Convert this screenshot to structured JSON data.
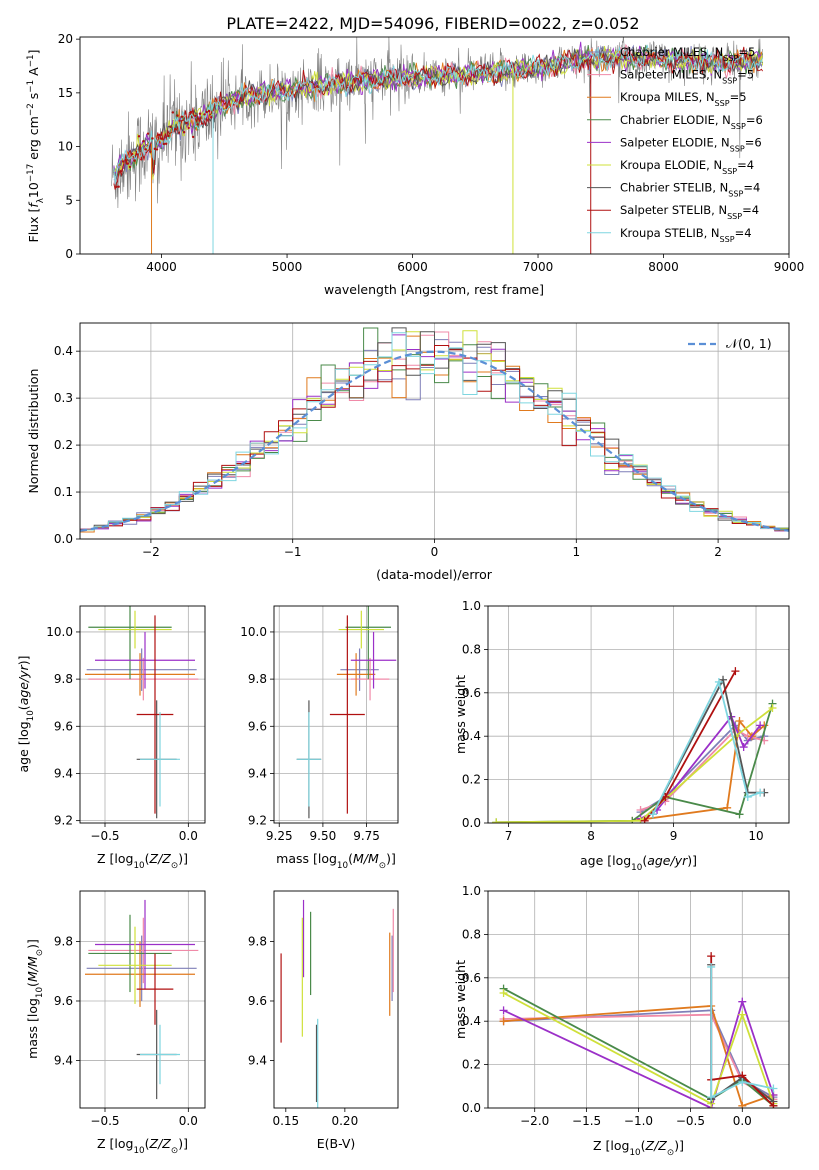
{
  "figure_title": "PLATE=2422, MJD=54096, FIBERID=0022, z=0.052",
  "colors": {
    "chabrier_miles": "#7f7fb8",
    "salpeter_miles": "#f08aa8",
    "kroupa_miles": "#e07a1e",
    "chabrier_elodie": "#4a8a4a",
    "salpeter_elodie": "#9b30c8",
    "kroupa_elodie": "#cfe03a",
    "chabrier_stelib": "#555555",
    "salpeter_stelib": "#b01010",
    "kroupa_stelib": "#7fd6e0",
    "data_spectrum": "#808080",
    "normal_curve": "#5b8fd6"
  },
  "chart_data": [
    {
      "id": "spectrum",
      "type": "line",
      "xlabel": "wavelength [Angstrom, rest frame]",
      "ylabel": "Flux [f_λ10^-17 erg cm^-2 s^-1 A^-1]",
      "xlim": [
        3350,
        9000
      ],
      "ylim": [
        0,
        20.2
      ],
      "xticks": [
        4000,
        5000,
        6000,
        7000,
        8000,
        9000
      ],
      "yticks": [
        0,
        5,
        10,
        15,
        20
      ],
      "legend_position": "top-right",
      "legend": [
        {
          "label": "Chabrier MILES, N_SSP=5",
          "color_key": "chabrier_miles"
        },
        {
          "label": "Salpeter MILES, N_SSP=5",
          "color_key": "salpeter_miles"
        },
        {
          "label": "Kroupa MILES, N_SSP=5",
          "color_key": "kroupa_miles"
        },
        {
          "label": "Chabrier ELODIE, N_SSP=6",
          "color_key": "chabrier_elodie"
        },
        {
          "label": "Salpeter ELODIE, N_SSP=6",
          "color_key": "salpeter_elodie"
        },
        {
          "label": "Kroupa ELODIE, N_SSP=4",
          "color_key": "kroupa_elodie"
        },
        {
          "label": "Chabrier STELIB, N_SSP=4",
          "color_key": "chabrier_stelib"
        },
        {
          "label": "Salpeter STELIB, N_SSP=4",
          "color_key": "salpeter_stelib"
        },
        {
          "label": "Kroupa STELIB, N_SSP=4",
          "color_key": "kroupa_stelib"
        }
      ],
      "continuum": [
        [
          3600,
          7.0
        ],
        [
          3700,
          8.5
        ],
        [
          3900,
          10.2
        ],
        [
          4000,
          10.5
        ],
        [
          4100,
          12.0
        ],
        [
          4300,
          12.5
        ],
        [
          4500,
          14.0
        ],
        [
          4700,
          14.8
        ],
        [
          5000,
          15.2
        ],
        [
          5200,
          15.6
        ],
        [
          5500,
          16.0
        ],
        [
          5800,
          16.3
        ],
        [
          6000,
          16.5
        ],
        [
          6300,
          16.6
        ],
        [
          6600,
          16.9
        ],
        [
          7000,
          17.3
        ],
        [
          7400,
          18.2
        ],
        [
          7800,
          18.3
        ],
        [
          8200,
          18.0
        ],
        [
          8500,
          17.8
        ],
        [
          8790,
          18.1
        ]
      ]
    },
    {
      "id": "residual_hist",
      "type": "step",
      "xlabel": "(data-model)/error",
      "ylabel": "Normed distribution",
      "xlim": [
        -2.5,
        2.5
      ],
      "ylim": [
        0,
        0.46
      ],
      "xticks": [
        -2,
        -1,
        0,
        1,
        2
      ],
      "yticks": [
        0.0,
        0.1,
        0.2,
        0.3,
        0.4
      ],
      "grid": true,
      "legend_position": "top-right",
      "normal_label": "𝒩(0, 1)",
      "bin_width": 0.1
    },
    {
      "id": "age_vs_Z",
      "type": "errorbar",
      "xlabel": "Z [log10(Z/Z☉)]",
      "ylabel": "age [log10(age/yr)]",
      "xlim": [
        -0.65,
        0.1
      ],
      "ylim": [
        9.19,
        10.11
      ],
      "xticks": [
        -0.5,
        0.0
      ],
      "yticks": [
        9.2,
        9.4,
        9.6,
        9.8,
        10.0
      ],
      "grid": true,
      "points": [
        {
          "series": "chabrier_miles",
          "x": -0.28,
          "xerr": 0.33,
          "y": 9.84,
          "yerr": 0.09
        },
        {
          "series": "salpeter_miles",
          "x": -0.27,
          "xerr": 0.33,
          "y": 9.8,
          "yerr": 0.09
        },
        {
          "series": "kroupa_miles",
          "x": -0.29,
          "xerr": 0.33,
          "y": 9.82,
          "yerr": 0.09
        },
        {
          "series": "chabrier_elodie",
          "x": -0.35,
          "xerr": 0.25,
          "y": 10.02,
          "yerr": 0.22
        },
        {
          "series": "salpeter_elodie",
          "x": -0.26,
          "xerr": 0.3,
          "y": 9.88,
          "yerr": 0.12
        },
        {
          "series": "kroupa_elodie",
          "x": -0.32,
          "xerr": 0.22,
          "y": 10.01,
          "yerr": 0.08
        },
        {
          "series": "chabrier_stelib",
          "x": -0.19,
          "xerr": 0.12,
          "y": 9.46,
          "yerr": 0.25
        },
        {
          "series": "salpeter_stelib",
          "x": -0.2,
          "xerr": 0.11,
          "y": 9.65,
          "yerr": 0.42
        },
        {
          "series": "kroupa_stelib",
          "x": -0.17,
          "xerr": 0.12,
          "y": 9.46,
          "yerr": 0.2
        }
      ]
    },
    {
      "id": "age_vs_mass",
      "type": "errorbar",
      "xlabel": "mass [log10(M/M☉)]",
      "ylabel": "",
      "xlim": [
        9.22,
        9.93
      ],
      "ylim": [
        9.19,
        10.11
      ],
      "xticks": [
        9.25,
        9.5,
        9.75
      ],
      "yticks": [
        9.2,
        9.4,
        9.6,
        9.8,
        10.0
      ],
      "grid": true,
      "points": [
        {
          "series": "chabrier_miles",
          "x": 9.71,
          "xerr": 0.11,
          "y": 9.84,
          "yerr": 0.09
        },
        {
          "series": "salpeter_miles",
          "x": 9.77,
          "xerr": 0.11,
          "y": 9.8,
          "yerr": 0.09
        },
        {
          "series": "kroupa_miles",
          "x": 9.69,
          "xerr": 0.11,
          "y": 9.82,
          "yerr": 0.09
        },
        {
          "series": "chabrier_elodie",
          "x": 9.76,
          "xerr": 0.13,
          "y": 10.02,
          "yerr": 0.22
        },
        {
          "series": "salpeter_elodie",
          "x": 9.79,
          "xerr": 0.13,
          "y": 9.88,
          "yerr": 0.12
        },
        {
          "series": "kroupa_elodie",
          "x": 9.72,
          "xerr": 0.13,
          "y": 10.01,
          "yerr": 0.08
        },
        {
          "series": "chabrier_stelib",
          "x": 9.42,
          "xerr": 0.07,
          "y": 9.46,
          "yerr": 0.25
        },
        {
          "series": "salpeter_stelib",
          "x": 9.64,
          "xerr": 0.1,
          "y": 9.65,
          "yerr": 0.42
        },
        {
          "series": "kroupa_stelib",
          "x": 9.42,
          "xerr": 0.07,
          "y": 9.46,
          "yerr": 0.2
        }
      ]
    },
    {
      "id": "weight_vs_age",
      "type": "line",
      "xlabel": "age [log10(age/yr)]",
      "ylabel": "mass weight",
      "xlim": [
        6.75,
        10.4
      ],
      "ylim": [
        0,
        1.0
      ],
      "xticks": [
        7,
        8,
        9,
        10
      ],
      "yticks": [
        0.0,
        0.2,
        0.4,
        0.6,
        0.8,
        1.0
      ],
      "grid": true,
      "series": [
        {
          "series": "chabrier_miles",
          "x": [
            8.6,
            8.9,
            9.75,
            9.9,
            10.1
          ],
          "y": [
            0.05,
            0.12,
            0.45,
            0.38,
            0.4
          ]
        },
        {
          "series": "salpeter_miles",
          "x": [
            8.6,
            8.9,
            9.75,
            9.9,
            10.1
          ],
          "y": [
            0.06,
            0.1,
            0.43,
            0.4,
            0.38
          ]
        },
        {
          "series": "kroupa_miles",
          "x": [
            8.5,
            9.65,
            9.8,
            9.95,
            10.1
          ],
          "y": [
            0.01,
            0.07,
            0.47,
            0.4,
            0.45
          ]
        },
        {
          "series": "chabrier_elodie",
          "x": [
            6.85,
            8.5,
            8.9,
            9.8,
            10.2
          ],
          "y": [
            0.003,
            0.01,
            0.12,
            0.04,
            0.55
          ]
        },
        {
          "series": "salpeter_elodie",
          "x": [
            8.6,
            8.8,
            9.7,
            9.85,
            10.05
          ],
          "y": [
            0.02,
            0.06,
            0.49,
            0.35,
            0.45
          ]
        },
        {
          "series": "kroupa_elodie",
          "x": [
            6.85,
            8.6,
            9.75,
            10.2
          ],
          "y": [
            0.003,
            0.01,
            0.4,
            0.53
          ]
        },
        {
          "series": "chabrier_stelib",
          "x": [
            8.75,
            9.6,
            9.9,
            10.1
          ],
          "y": [
            0.04,
            0.66,
            0.14,
            0.14
          ]
        },
        {
          "series": "salpeter_stelib",
          "x": [
            8.65,
            8.9,
            9.75
          ],
          "y": [
            0.01,
            0.12,
            0.7
          ]
        },
        {
          "series": "kroupa_stelib",
          "x": [
            8.75,
            9.55,
            9.9,
            10.05
          ],
          "y": [
            0.04,
            0.65,
            0.12,
            0.14
          ]
        }
      ]
    },
    {
      "id": "mass_vs_Z",
      "type": "errorbar",
      "xlabel": "Z [log10(Z/Z☉)]",
      "ylabel": "mass [log10(M/M☉)]",
      "xlim": [
        -0.65,
        0.1
      ],
      "ylim": [
        9.24,
        9.97
      ],
      "xticks": [
        -0.5,
        0.0
      ],
      "yticks": [
        9.4,
        9.6,
        9.8
      ],
      "grid": true,
      "points": [
        {
          "series": "chabrier_miles",
          "x": -0.28,
          "xerr": 0.33,
          "y": 9.71,
          "yerr": 0.11
        },
        {
          "series": "salpeter_miles",
          "x": -0.27,
          "xerr": 0.33,
          "y": 9.77,
          "yerr": 0.11
        },
        {
          "series": "kroupa_miles",
          "x": -0.29,
          "xerr": 0.33,
          "y": 9.69,
          "yerr": 0.11
        },
        {
          "series": "chabrier_elodie",
          "x": -0.35,
          "xerr": 0.25,
          "y": 9.76,
          "yerr": 0.13
        },
        {
          "series": "salpeter_elodie",
          "x": -0.26,
          "xerr": 0.3,
          "y": 9.79,
          "yerr": 0.15
        },
        {
          "series": "kroupa_elodie",
          "x": -0.32,
          "xerr": 0.22,
          "y": 9.72,
          "yerr": 0.13
        },
        {
          "series": "chabrier_stelib",
          "x": -0.19,
          "xerr": 0.12,
          "y": 9.42,
          "yerr": 0.15
        },
        {
          "series": "salpeter_stelib",
          "x": -0.2,
          "xerr": 0.11,
          "y": 9.64,
          "yerr": 0.12
        },
        {
          "series": "kroupa_stelib",
          "x": -0.17,
          "xerr": 0.12,
          "y": 9.42,
          "yerr": 0.1
        }
      ]
    },
    {
      "id": "mass_vs_ebv",
      "type": "errorbar",
      "xlabel": "E(B-V)",
      "ylabel": "",
      "xlim": [
        0.14,
        0.245
      ],
      "ylim": [
        9.24,
        9.97
      ],
      "xticks": [
        0.15,
        0.2
      ],
      "yticks": [
        9.4,
        9.6,
        9.8
      ],
      "grid": false,
      "points": [
        {
          "series": "chabrier_miles",
          "x": 0.24,
          "y": 9.71,
          "yerr": 0.11
        },
        {
          "series": "salpeter_miles",
          "x": 0.241,
          "y": 9.77,
          "yerr": 0.14
        },
        {
          "series": "kroupa_miles",
          "x": 0.238,
          "y": 9.69,
          "yerr": 0.14
        },
        {
          "series": "chabrier_elodie",
          "x": 0.171,
          "y": 9.76,
          "yerr": 0.14
        },
        {
          "series": "salpeter_elodie",
          "x": 0.165,
          "y": 9.81,
          "yerr": 0.13
        },
        {
          "series": "kroupa_elodie",
          "x": 0.164,
          "y": 9.68,
          "yerr": 0.2
        },
        {
          "series": "chabrier_stelib",
          "x": 0.176,
          "y": 9.39,
          "yerr": 0.13
        },
        {
          "series": "salpeter_stelib",
          "x": 0.146,
          "y": 9.61,
          "yerr": 0.15
        },
        {
          "series": "kroupa_stelib",
          "x": 0.177,
          "y": 9.39,
          "yerr": 0.15
        }
      ]
    },
    {
      "id": "weight_vs_Z",
      "type": "line",
      "xlabel": "Z [log10(Z/Z☉)]",
      "ylabel": "mass weight",
      "xlim": [
        -2.45,
        0.45
      ],
      "ylim": [
        0,
        1.0
      ],
      "xticks": [
        -2.0,
        -1.5,
        -1.0,
        -0.5,
        0.0
      ],
      "yticks": [
        0.0,
        0.2,
        0.4,
        0.6,
        0.8,
        1.0
      ],
      "grid": true,
      "series": [
        {
          "series": "chabrier_miles",
          "x": [
            -2.3,
            -0.3,
            0.0,
            0.3
          ],
          "y": [
            0.4,
            0.45,
            0.13,
            0.05
          ]
        },
        {
          "series": "salpeter_miles",
          "x": [
            -2.3,
            -0.3,
            0.0,
            0.3
          ],
          "y": [
            0.41,
            0.43,
            0.12,
            0.04
          ]
        },
        {
          "series": "kroupa_miles",
          "x": [
            -2.3,
            -0.3,
            0.0,
            0.3
          ],
          "y": [
            0.4,
            0.47,
            0.01,
            0.06
          ]
        },
        {
          "series": "chabrier_elodie",
          "x": [
            -2.3,
            -0.3,
            0.0,
            0.3
          ],
          "y": [
            0.55,
            0.04,
            0.13,
            0.01
          ]
        },
        {
          "series": "salpeter_elodie",
          "x": [
            -2.3,
            -0.3,
            0.0,
            0.3
          ],
          "y": [
            0.45,
            0.0,
            0.49,
            0.06
          ]
        },
        {
          "series": "kroupa_elodie",
          "x": [
            -2.3,
            -0.3,
            0.0,
            0.3
          ],
          "y": [
            0.53,
            0.02,
            0.43,
            0.02
          ]
        },
        {
          "series": "chabrier_stelib",
          "x": [
            -0.3,
            -0.3,
            0.0,
            0.3
          ],
          "y": [
            0.66,
            0.04,
            0.14,
            0.03
          ]
        },
        {
          "series": "salpeter_stelib",
          "x": [
            -0.3,
            -0.3,
            0.0,
            0.3
          ],
          "y": [
            0.7,
            0.13,
            0.15,
            0.01
          ]
        },
        {
          "series": "kroupa_stelib",
          "x": [
            -0.3,
            -0.3,
            0.0,
            0.3
          ],
          "y": [
            0.65,
            0.05,
            0.12,
            0.09
          ]
        }
      ]
    }
  ]
}
